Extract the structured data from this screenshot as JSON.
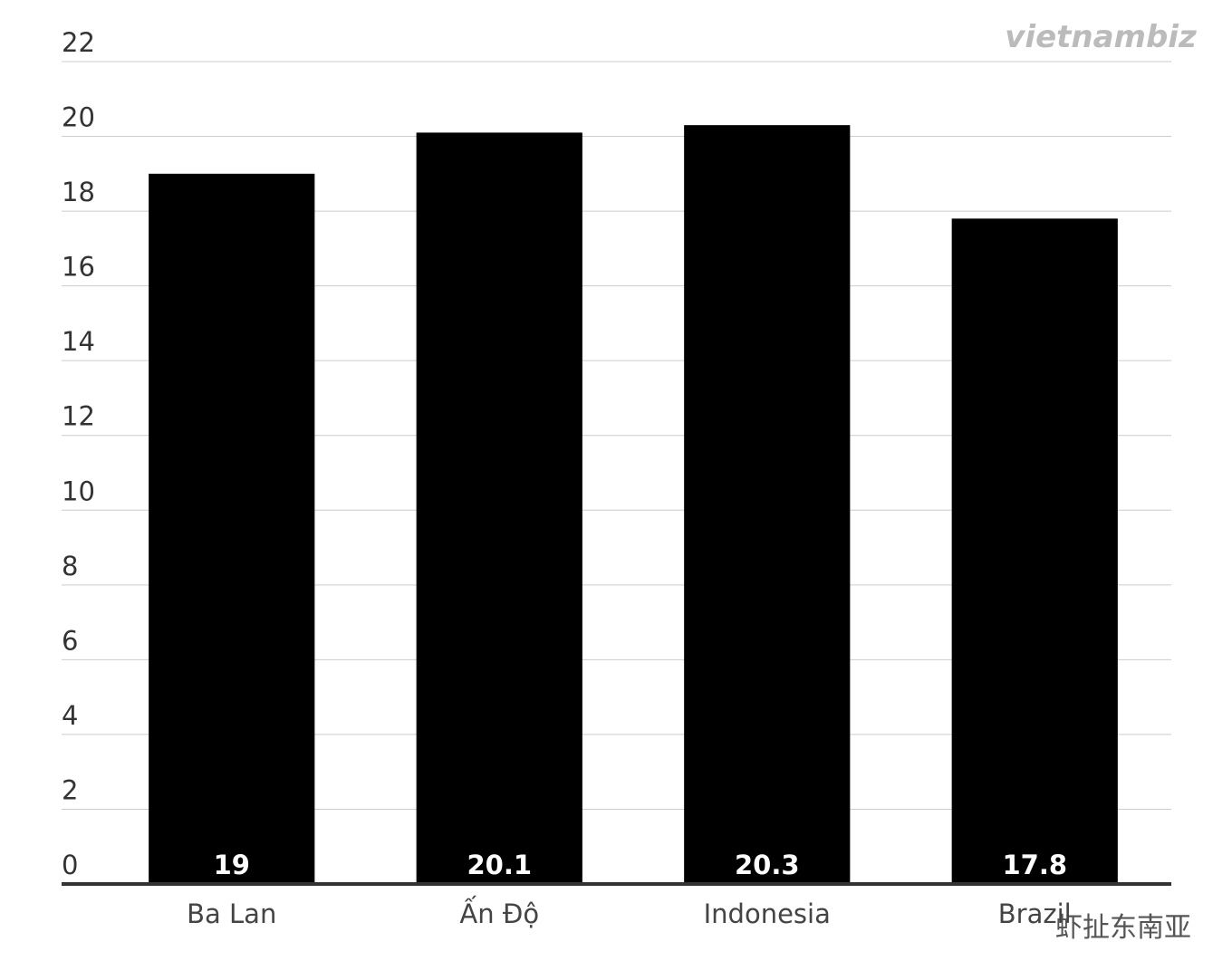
{
  "chart_data": {
    "type": "bar",
    "categories": [
      "Ba Lan",
      "Ấn Độ",
      "Indonesia",
      "Brazil"
    ],
    "values": [
      19,
      20.1,
      20.3,
      17.8
    ],
    "color": "#000000",
    "ylim": [
      0,
      22
    ],
    "yticks": [
      0,
      2,
      4,
      6,
      8,
      10,
      12,
      14,
      16,
      18,
      20,
      22
    ],
    "grid": true,
    "watermarks": [
      "vietnambiz",
      "虾扯东南亚"
    ]
  }
}
